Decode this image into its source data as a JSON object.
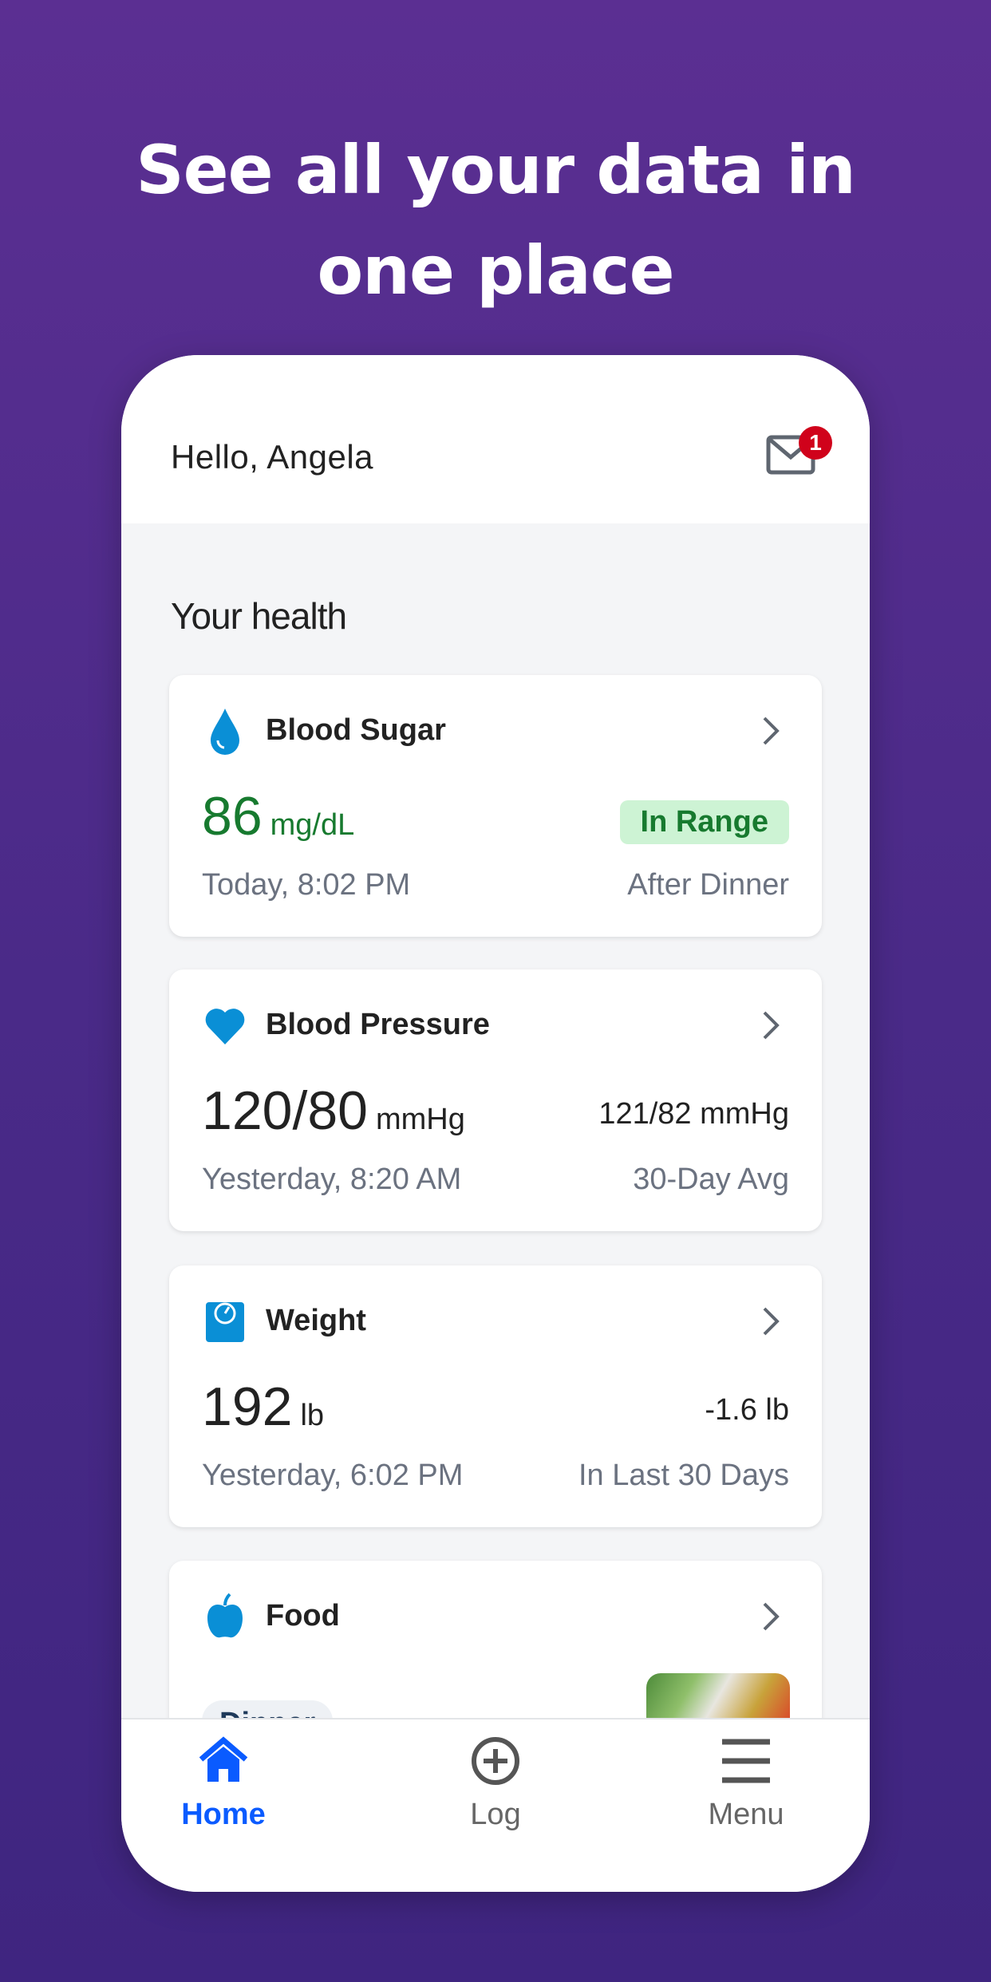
{
  "headline": {
    "line1": "See all your data in",
    "line2": "one place"
  },
  "header": {
    "greeting": "Hello, Angela",
    "inbox_badge": "1",
    "mail_icon": "mail-icon"
  },
  "section_title": "Your health",
  "cards": [
    {
      "title": "Blood Sugar",
      "icon": "water-drop-icon",
      "value": "86",
      "unit": "mg/dL",
      "status": "In Range",
      "time": "Today, 8:02 PM",
      "context": "After Dinner",
      "accent": "#177a2f"
    },
    {
      "title": "Blood Pressure",
      "icon": "heart-icon",
      "value": "120/80",
      "unit": "mmHg",
      "average": "121/82 mmHg",
      "time": "Yesterday, 8:20 AM",
      "context": "30-Day Avg"
    },
    {
      "title": "Weight",
      "icon": "scale-icon",
      "value": "192",
      "unit": "lb",
      "change": "-1.6 lb",
      "time": "Yesterday, 6:02 PM",
      "context": "In Last 30 Days"
    },
    {
      "title": "Food",
      "icon": "apple-icon",
      "meal": "Dinner"
    }
  ],
  "nav": [
    {
      "label": "Home",
      "icon": "home-icon",
      "active": true
    },
    {
      "label": "Log",
      "icon": "plus-circle-icon"
    },
    {
      "label": "Menu",
      "icon": "hamburger-menu-icon"
    }
  ],
  "colors": {
    "icon_blue": "#0a8fd6",
    "active_blue": "#0a5bff",
    "badge_red": "#d0021b"
  }
}
